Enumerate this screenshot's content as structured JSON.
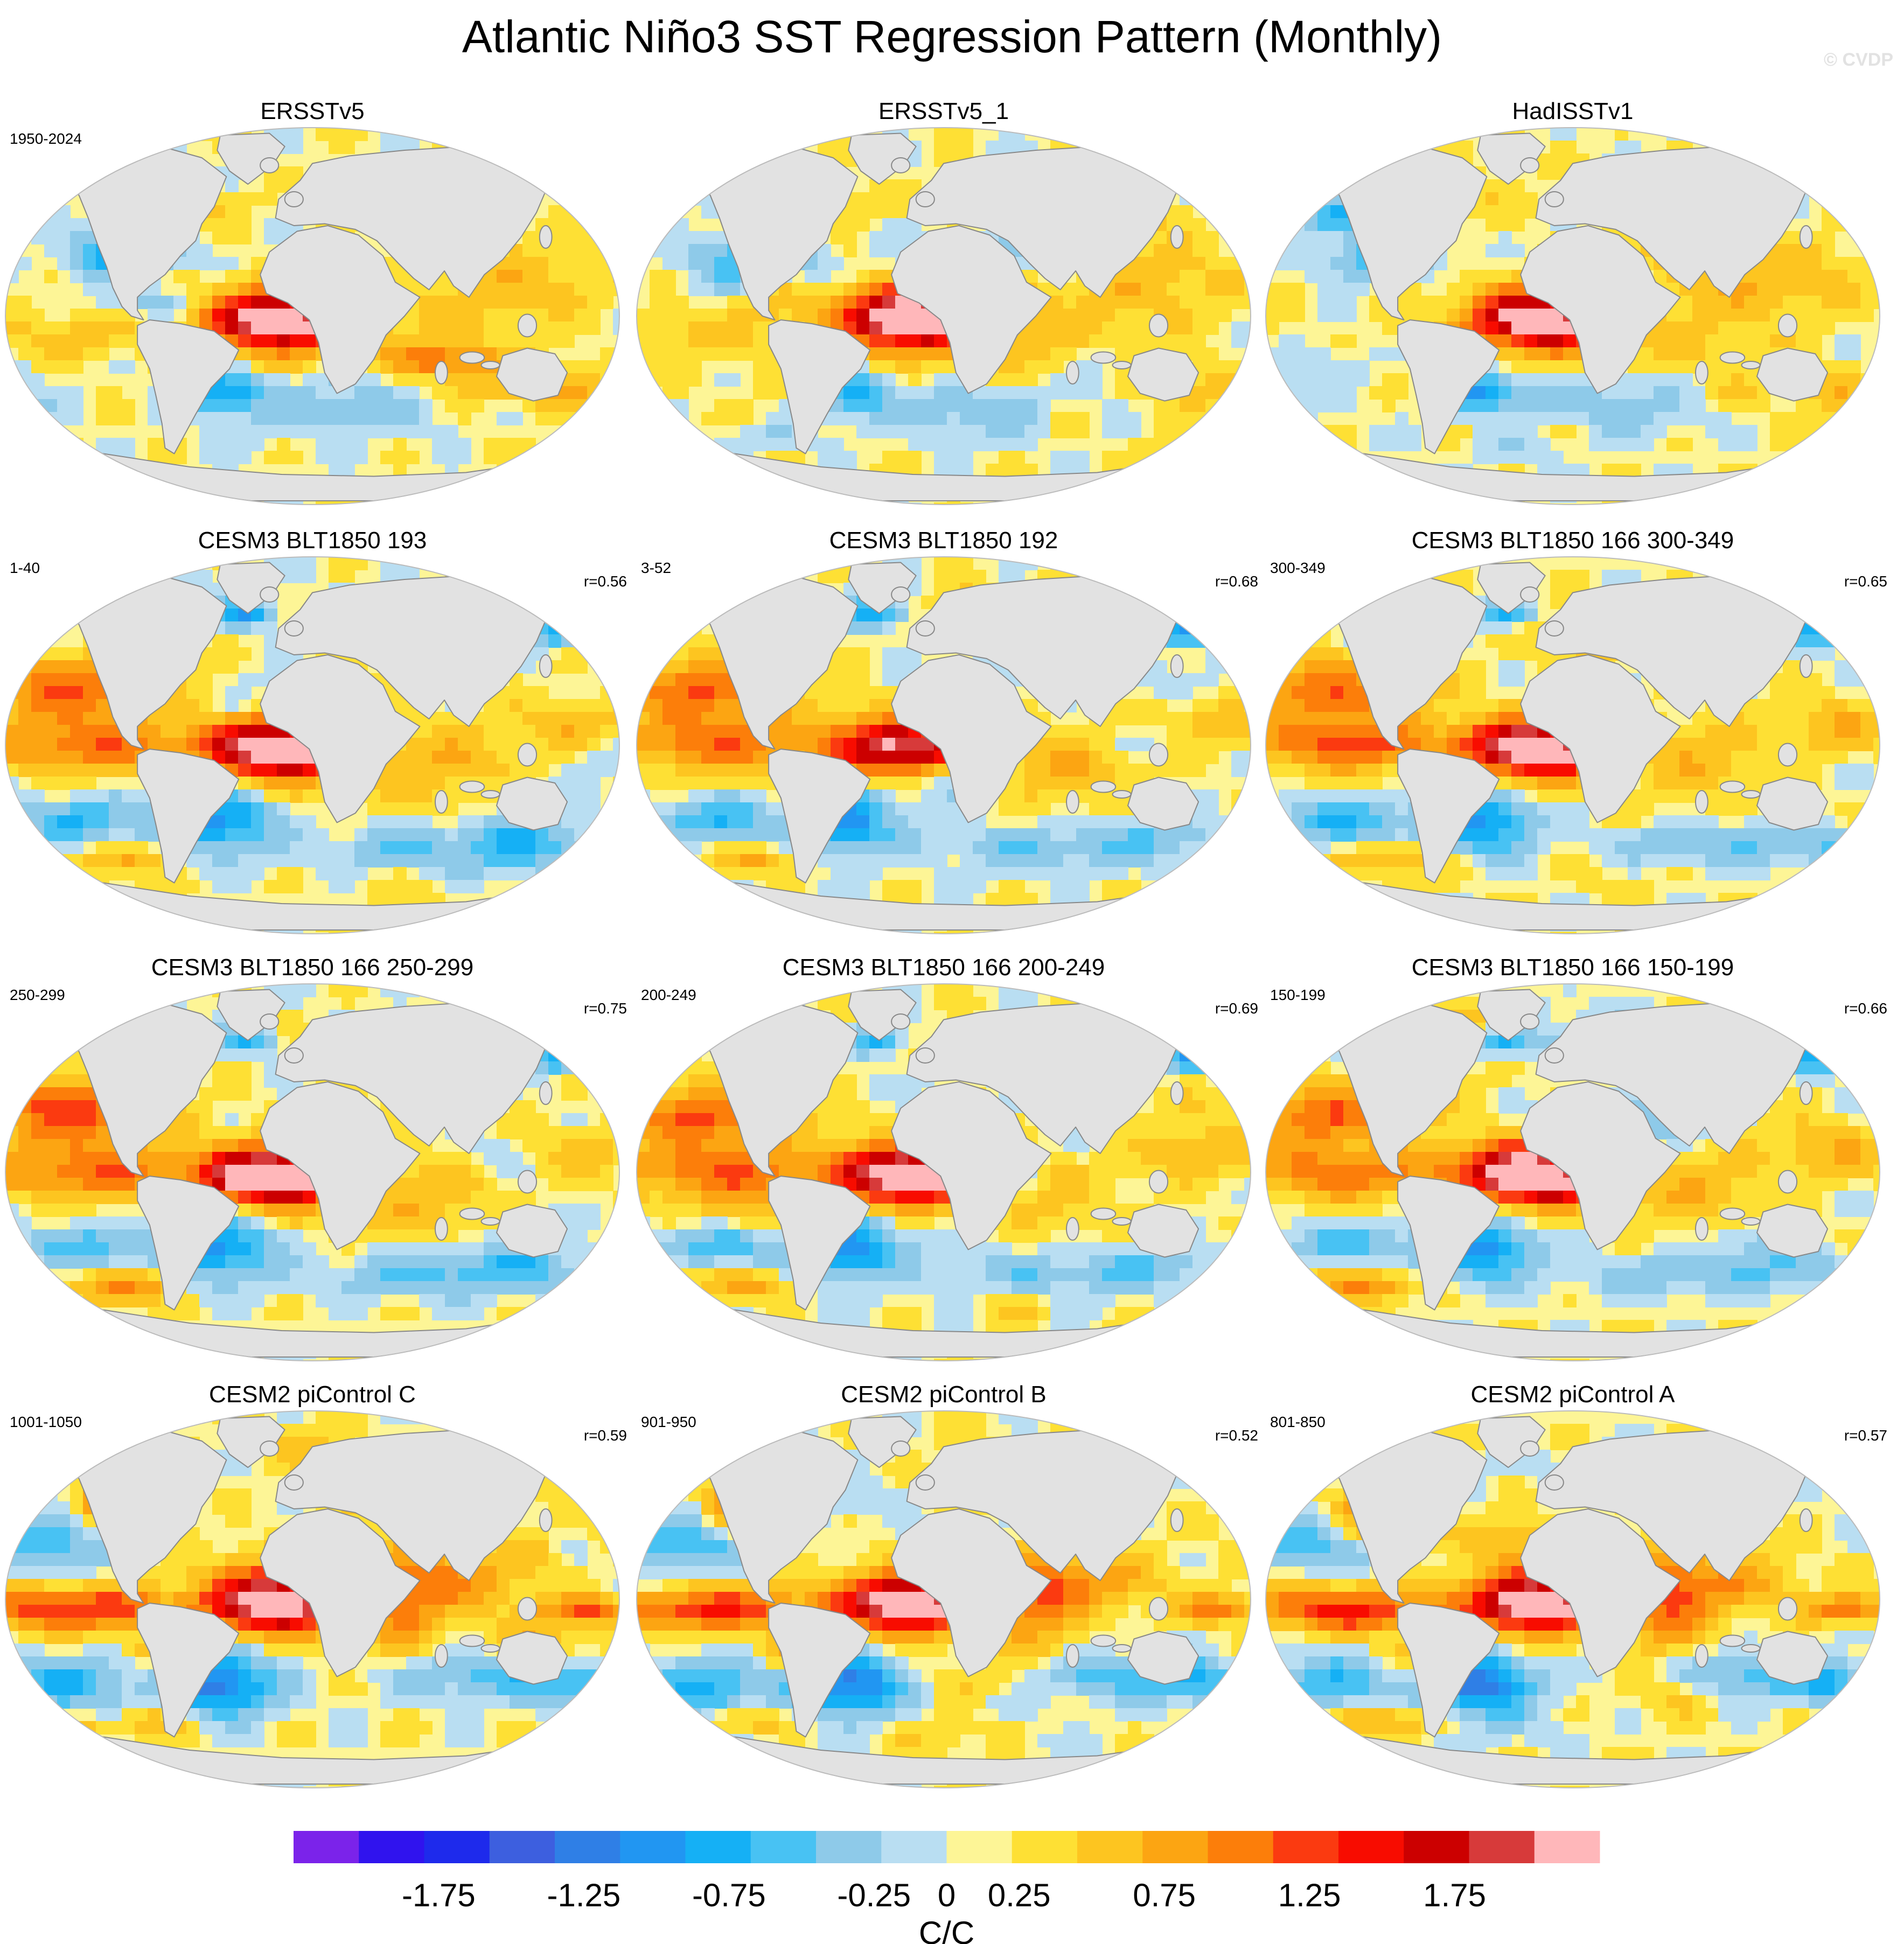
{
  "title": "Atlantic Niño3 SST Regression Pattern (Monthly)",
  "watermark": "© CVDP",
  "colors": {
    "land": "#e2e2e2",
    "coast": "#888888",
    "outline": "#bbbbbb"
  },
  "colorbar": {
    "units": "C/C",
    "colors": [
      "#7b23ea",
      "#3013ee",
      "#1e2aec",
      "#3d5fdf",
      "#2f7fe6",
      "#2196f2",
      "#15b0f5",
      "#48c2f3",
      "#8ecae9",
      "#b9def2",
      "#fdf596",
      "#fee034",
      "#fdc520",
      "#fca512",
      "#fc7e0a",
      "#fb3a10",
      "#f80c00",
      "#cc0000",
      "#d73a3a",
      "#ffb7ba"
    ],
    "tick_labels": [
      "-1.75",
      "-1.25",
      "-0.75",
      "-0.25",
      "0",
      "0.25",
      "0.75",
      "1.25",
      "1.75"
    ],
    "boundaries": [
      -2.25,
      -2,
      -1.75,
      -1.5,
      -1.25,
      -1,
      -0.75,
      -0.5,
      -0.25,
      -0.05,
      0.05,
      0.25,
      0.5,
      0.75,
      1,
      1.25,
      1.5,
      1.75,
      2,
      2.25
    ],
    "range": [
      -2.25,
      2.25
    ]
  },
  "panels": [
    {
      "title": "ERSSTv5",
      "left": "1950-2024",
      "right": "",
      "pattern": "obs"
    },
    {
      "title": "ERSSTv5_1",
      "left": "",
      "right": "",
      "pattern": "obs"
    },
    {
      "title": "HadISSTv1",
      "left": "",
      "right": "",
      "pattern": "obs"
    },
    {
      "title": "CESM3 BLT1850 193",
      "left": "1-40",
      "right": "r=0.56",
      "pattern": "blt"
    },
    {
      "title": "CESM3 BLT1850 192",
      "left": "3-52",
      "right": "r=0.68",
      "pattern": "blt"
    },
    {
      "title": "CESM3 BLT1850 166 300-349",
      "left": "300-349",
      "right": "r=0.65",
      "pattern": "blt"
    },
    {
      "title": "CESM3 BLT1850 166 250-299",
      "left": "250-299",
      "right": "r=0.75",
      "pattern": "blt"
    },
    {
      "title": "CESM3 BLT1850 166 200-249",
      "left": "200-249",
      "right": "r=0.69",
      "pattern": "blt"
    },
    {
      "title": "CESM3 BLT1850 166 150-199",
      "left": "150-199",
      "right": "r=0.66",
      "pattern": "blt"
    },
    {
      "title": "CESM2 piControl C",
      "left": "1001-1050",
      "right": "r=0.59",
      "pattern": "pic"
    },
    {
      "title": "CESM2 piControl B",
      "left": "901-950",
      "right": "r=0.52",
      "pattern": "pic"
    },
    {
      "title": "CESM2 piControl A",
      "left": "801-850",
      "right": "r=0.57",
      "pattern": "pic"
    }
  ]
}
